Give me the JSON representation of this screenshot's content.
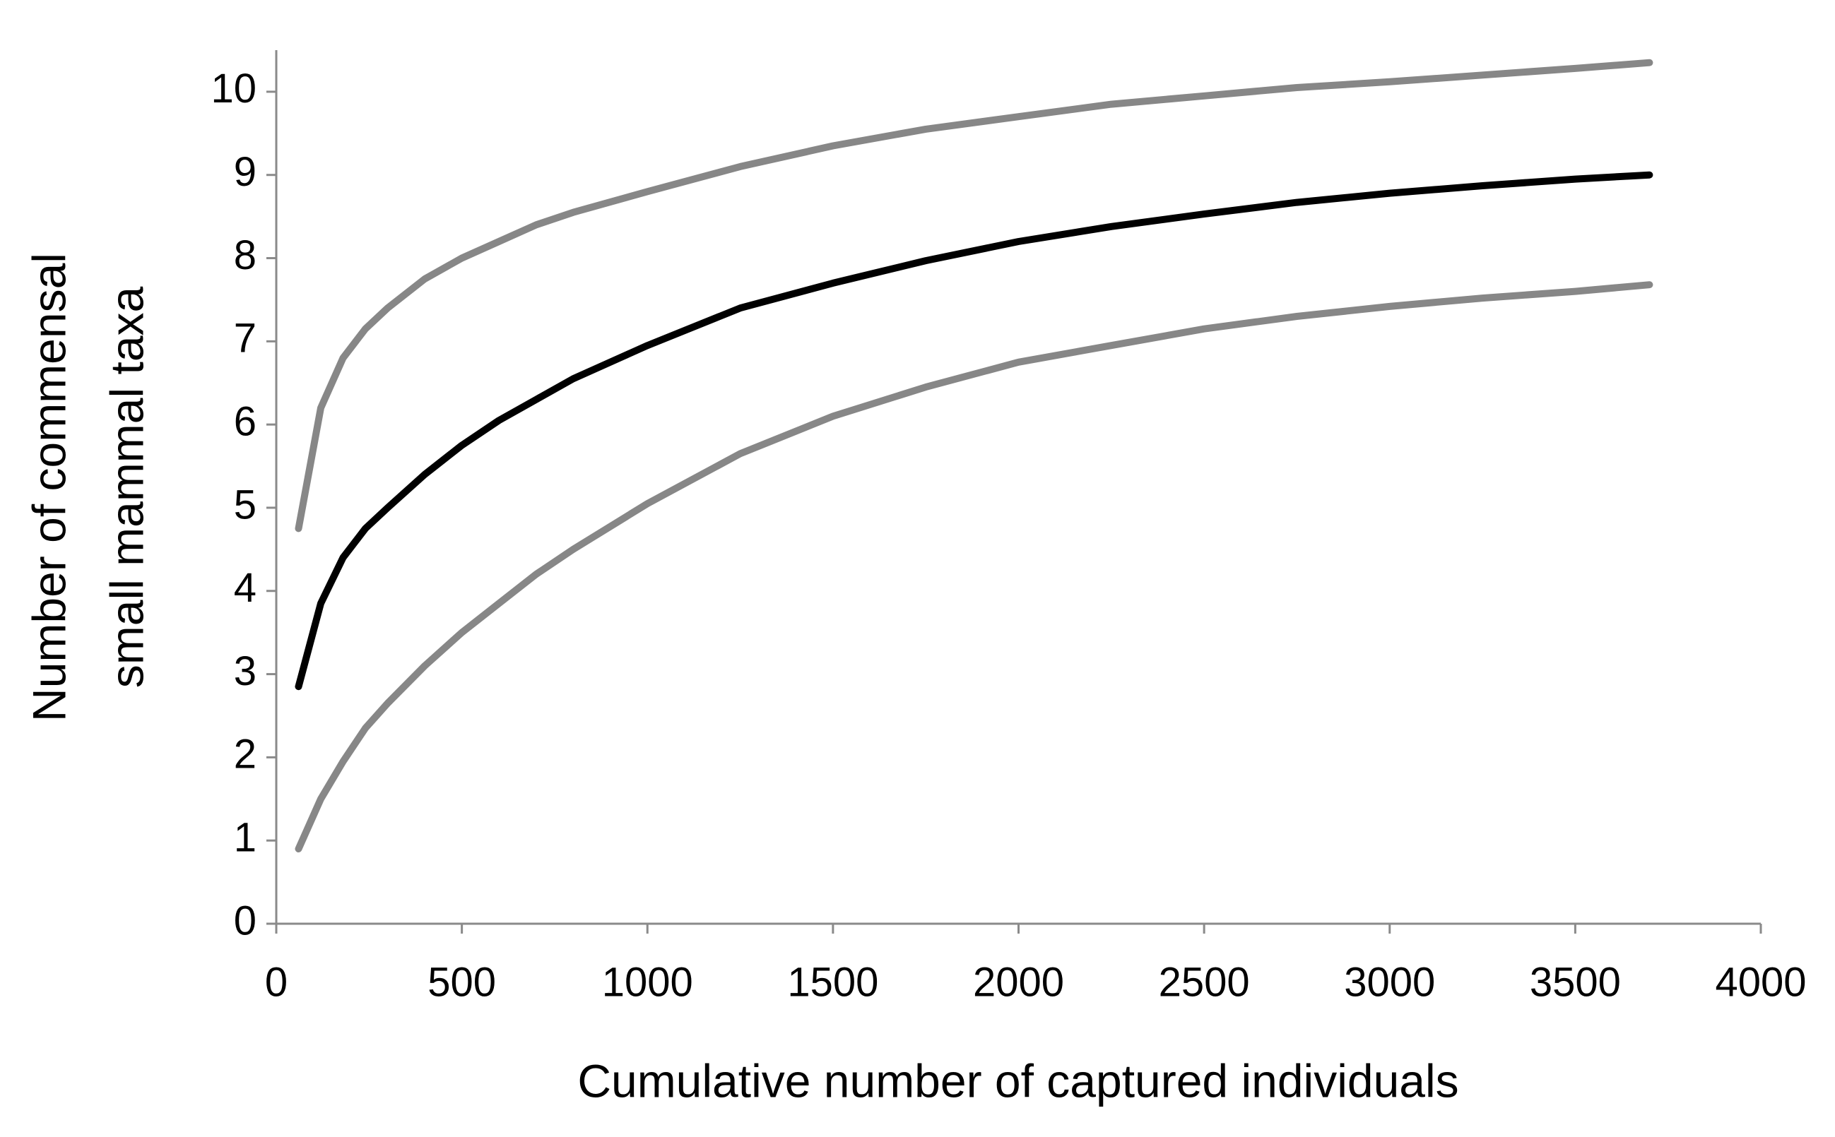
{
  "chart_data": {
    "type": "line",
    "xlabel": "Cumulative number of captured individuals",
    "ylabel": [
      "Number of commensal",
      "small mammal taxa"
    ],
    "x": [
      60,
      120,
      180,
      240,
      300,
      400,
      500,
      600,
      700,
      800,
      1000,
      1250,
      1500,
      1750,
      2000,
      2250,
      2500,
      2750,
      3000,
      3250,
      3500,
      3700
    ],
    "series": [
      {
        "color": "#878787",
        "values": [
          4.75,
          6.2,
          6.8,
          7.15,
          7.4,
          7.75,
          8.0,
          8.2,
          8.4,
          8.55,
          8.8,
          9.1,
          9.35,
          9.55,
          9.7,
          9.85,
          9.95,
          10.05,
          10.12,
          10.2,
          10.28,
          10.35
        ]
      },
      {
        "color": "#000000",
        "values": [
          2.85,
          3.85,
          4.4,
          4.75,
          5.0,
          5.4,
          5.75,
          6.05,
          6.3,
          6.55,
          6.95,
          7.4,
          7.7,
          7.97,
          8.2,
          8.38,
          8.53,
          8.67,
          8.78,
          8.87,
          8.95,
          9.0
        ]
      },
      {
        "color": "#878787",
        "values": [
          0.9,
          1.5,
          1.95,
          2.35,
          2.65,
          3.1,
          3.5,
          3.85,
          4.2,
          4.5,
          5.05,
          5.65,
          6.1,
          6.45,
          6.75,
          6.95,
          7.15,
          7.3,
          7.42,
          7.52,
          7.6,
          7.68
        ]
      }
    ],
    "xlim": [
      0,
      4000
    ],
    "xticks": [
      0,
      500,
      1000,
      1500,
      2000,
      2500,
      3000,
      3500,
      4000
    ],
    "ylim": [
      0,
      10.5
    ],
    "yticks": [
      0,
      1,
      2,
      3,
      4,
      5,
      6,
      7,
      8,
      9,
      10
    ],
    "grid": false
  }
}
